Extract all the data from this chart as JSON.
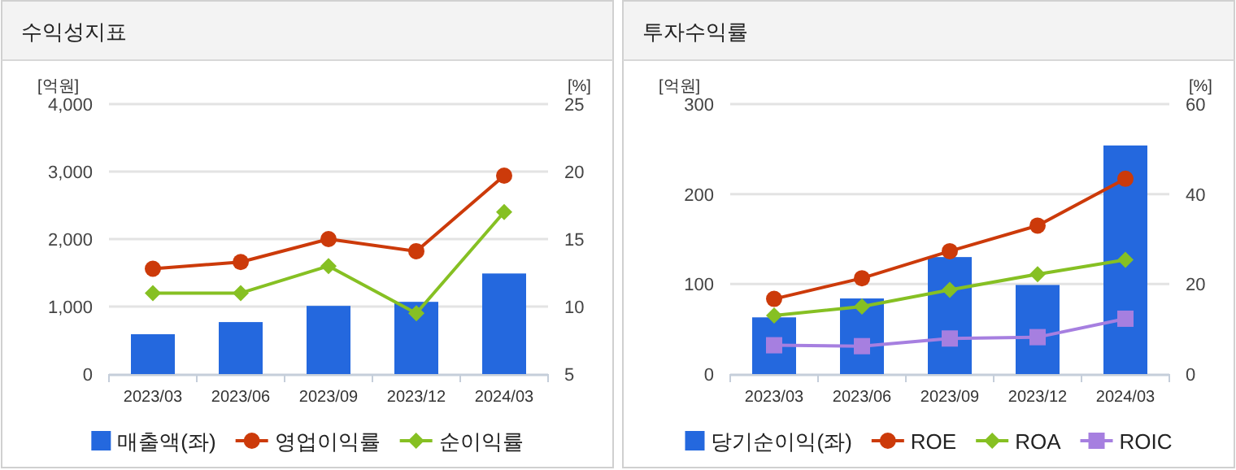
{
  "chart_data": [
    {
      "type": "bar",
      "title": "수익성지표",
      "ylabel": "[억원]",
      "y2label": "[%]",
      "categories": [
        "2023/03",
        "2023/06",
        "2023/09",
        "2023/12",
        "2024/03"
      ],
      "series": [
        {
          "name": "매출액(좌)",
          "color": "#2468de",
          "values": [
            590,
            770,
            1010,
            1070,
            1490
          ]
        },
        {
          "name": "영업이익률",
          "type": "line",
          "axis": "y2",
          "marker": "circle",
          "color": "#cc3a0a",
          "values": [
            12.8,
            13.3,
            15.0,
            14.1,
            19.7
          ]
        },
        {
          "name": "순이익률",
          "type": "line",
          "axis": "y2",
          "marker": "diamond",
          "color": "#86c023",
          "values": [
            11.0,
            11.0,
            13.0,
            9.5,
            17.0
          ]
        }
      ],
      "ylim": [
        0,
        4000
      ],
      "yticks": [
        {
          "value": 0,
          "label": "0"
        },
        {
          "value": 1000,
          "label": "1,000"
        },
        {
          "value": 2000,
          "label": "2,000"
        },
        {
          "value": 3000,
          "label": "3,000"
        },
        {
          "value": 4000,
          "label": "4,000"
        }
      ],
      "y2lim": [
        5,
        25
      ],
      "y2ticks": [
        5,
        10,
        15,
        20,
        25
      ],
      "grid": "y",
      "legend": "bottom"
    },
    {
      "type": "bar",
      "title": "투자수익률",
      "ylabel": "[억원]",
      "y2label": "[%]",
      "categories": [
        "2023/03",
        "2023/06",
        "2023/09",
        "2023/12",
        "2024/03"
      ],
      "series": [
        {
          "name": "당기순이익(좌)",
          "color": "#2468de",
          "values": [
            63,
            84,
            130,
            99,
            254
          ]
        },
        {
          "name": "ROE",
          "type": "line",
          "axis": "y2",
          "marker": "circle",
          "color": "#cc3a0a",
          "values": [
            16.7,
            21.3,
            27.3,
            33.0,
            43.4
          ]
        },
        {
          "name": "ROA",
          "type": "line",
          "axis": "y2",
          "marker": "diamond",
          "color": "#86c023",
          "values": [
            13.0,
            15.0,
            18.7,
            22.2,
            25.4
          ]
        },
        {
          "name": "ROIC",
          "type": "line",
          "axis": "y2",
          "marker": "square",
          "color": "#a67fe0",
          "values": [
            6.4,
            6.2,
            7.9,
            8.2,
            12.3
          ]
        }
      ],
      "ylim": [
        0,
        300
      ],
      "yticks": [
        0,
        100,
        200,
        300
      ],
      "y2lim": [
        0,
        60
      ],
      "y2ticks": [
        0,
        20,
        40,
        60
      ],
      "grid": "y",
      "legend": "bottom"
    }
  ]
}
